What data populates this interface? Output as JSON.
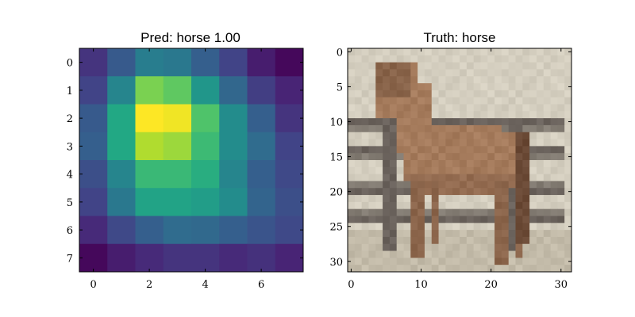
{
  "chart_data": [
    {
      "type": "heatmap",
      "title": "Pred: horse 1.00",
      "xlabel": "",
      "ylabel": "",
      "colormap": "viridis",
      "x_ticks": [
        "0",
        "2",
        "4",
        "6"
      ],
      "y_ticks": [
        "0",
        "1",
        "2",
        "3",
        "4",
        "5",
        "6",
        "7"
      ],
      "xlim": [
        -0.5,
        7.5
      ],
      "ylim": [
        7.5,
        -0.5
      ],
      "grid": false,
      "values": [
        [
          0.15,
          0.28,
          0.42,
          0.4,
          0.3,
          0.2,
          0.08,
          0.02
        ],
        [
          0.2,
          0.45,
          0.8,
          0.75,
          0.52,
          0.33,
          0.18,
          0.1
        ],
        [
          0.28,
          0.6,
          1.0,
          0.98,
          0.72,
          0.48,
          0.3,
          0.15
        ],
        [
          0.3,
          0.6,
          0.88,
          0.85,
          0.68,
          0.48,
          0.35,
          0.2
        ],
        [
          0.24,
          0.45,
          0.67,
          0.67,
          0.62,
          0.45,
          0.3,
          0.22
        ],
        [
          0.2,
          0.4,
          0.58,
          0.58,
          0.55,
          0.48,
          0.32,
          0.24
        ],
        [
          0.12,
          0.22,
          0.3,
          0.35,
          0.34,
          0.3,
          0.26,
          0.22
        ],
        [
          0.02,
          0.08,
          0.12,
          0.15,
          0.15,
          0.12,
          0.14,
          0.1
        ]
      ]
    },
    {
      "type": "image",
      "title": "Truth: horse",
      "xlabel": "",
      "ylabel": "",
      "x_ticks": [
        "0",
        "10",
        "20",
        "30"
      ],
      "y_ticks": [
        "0",
        "5",
        "10",
        "15",
        "20",
        "25",
        "30"
      ],
      "xlim": [
        -0.5,
        31.5
      ],
      "ylim": [
        31.5,
        -0.5
      ],
      "grid": false,
      "image_description_colors": {
        "background": "#d4cebf",
        "horse": "#a57b5c",
        "horse_shadow": "#6b4a36",
        "fence": "#6a625c",
        "fence_light": "#cfc8b6",
        "ground": "#b8ae9a"
      }
    }
  ]
}
